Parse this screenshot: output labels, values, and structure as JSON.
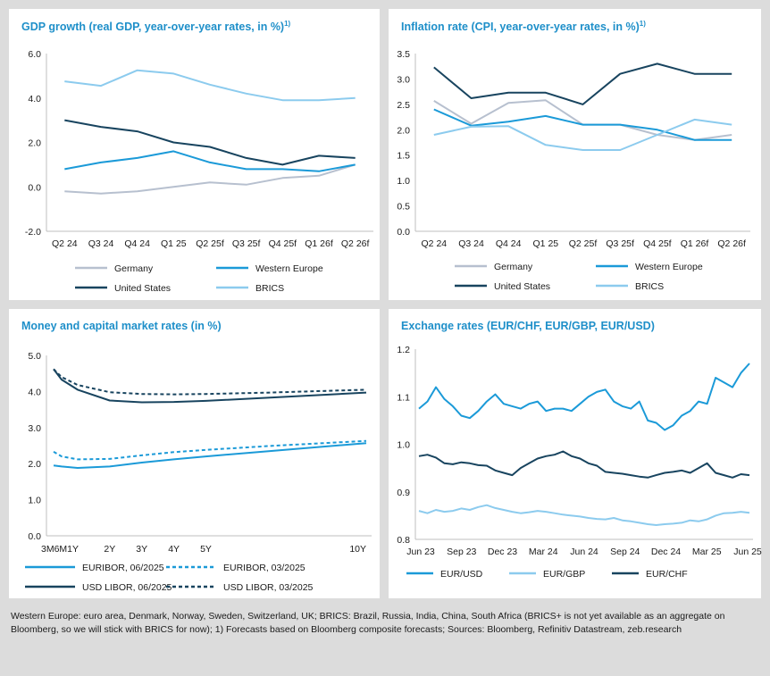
{
  "colors": {
    "germany": "#b7c0cf",
    "western_europe": "#1b9ad8",
    "united_states": "#18445f",
    "brics": "#8ccbee",
    "title": "#1e8fc9"
  },
  "chart_data": [
    {
      "id": "gdp",
      "type": "line",
      "title": "GDP growth (real GDP, year-over-year rates, in %)",
      "title_sup": "1)",
      "categories": [
        "Q2 24",
        "Q3 24",
        "Q4 24",
        "Q1 25",
        "Q2 25f",
        "Q3 25f",
        "Q4 25f",
        "Q1 26f",
        "Q2 26f"
      ],
      "ylim": [
        -2.0,
        6.0
      ],
      "yticks": [
        "6.0",
        "4.0",
        "2.0",
        "0.0",
        "-2.0"
      ],
      "ytick_values": [
        6,
        4,
        2,
        0,
        -2
      ],
      "series": [
        {
          "name": "Germany",
          "color": "#b7c0cf",
          "values": [
            -0.2,
            -0.3,
            -0.2,
            0.0,
            0.2,
            0.1,
            0.4,
            0.5,
            1.0
          ]
        },
        {
          "name": "Western Europe",
          "color": "#1b9ad8",
          "values": [
            0.8,
            1.1,
            1.3,
            1.6,
            1.1,
            0.8,
            0.8,
            0.7,
            1.0
          ]
        },
        {
          "name": "United States",
          "color": "#18445f",
          "values": [
            3.0,
            2.7,
            2.5,
            2.0,
            1.8,
            1.3,
            1.0,
            1.4,
            1.3
          ]
        },
        {
          "name": "BRICS",
          "color": "#8ccbee",
          "values": [
            4.75,
            4.55,
            5.25,
            5.1,
            4.6,
            4.2,
            3.9,
            3.9,
            4.0
          ]
        }
      ]
    },
    {
      "id": "inflation",
      "type": "line",
      "title": "Inflation rate (CPI, year-over-year rates, in %)",
      "title_sup": "1)",
      "categories": [
        "Q2 24",
        "Q3 24",
        "Q4 24",
        "Q1 25",
        "Q2 25f",
        "Q3 25f",
        "Q4 25f",
        "Q1 26f",
        "Q2 26f"
      ],
      "ylim": [
        0.0,
        3.5
      ],
      "yticks": [
        "3.5",
        "3.0",
        "2.5",
        "2.0",
        "1.5",
        "1.0",
        "0.5",
        "0.0"
      ],
      "ytick_values": [
        3.5,
        3.0,
        2.5,
        2.0,
        1.5,
        1.0,
        0.5,
        0.0
      ],
      "series": [
        {
          "name": "Germany",
          "color": "#b7c0cf",
          "values": [
            2.57,
            2.12,
            2.53,
            2.58,
            2.1,
            2.1,
            1.9,
            1.8,
            1.9
          ]
        },
        {
          "name": "Western Europe",
          "color": "#1b9ad8",
          "values": [
            2.4,
            2.08,
            2.16,
            2.27,
            2.1,
            2.1,
            2.0,
            1.8,
            1.8
          ]
        },
        {
          "name": "United States",
          "color": "#18445f",
          "values": [
            3.23,
            2.62,
            2.73,
            2.73,
            2.5,
            3.1,
            3.3,
            3.1,
            3.1
          ]
        },
        {
          "name": "BRICS",
          "color": "#8ccbee",
          "values": [
            1.9,
            2.06,
            2.07,
            1.7,
            1.6,
            1.6,
            1.9,
            2.2,
            2.1
          ]
        }
      ]
    },
    {
      "id": "money",
      "type": "line",
      "title": "Money and capital market rates (in %)",
      "x_tick_labels": [
        "3M6M1Y",
        "2Y",
        "3Y",
        "4Y",
        "5Y",
        "10Y"
      ],
      "x_tick_values": [
        0.25,
        2,
        3,
        4,
        5,
        10
      ],
      "xlim": [
        0.25,
        10
      ],
      "ylim": [
        0.0,
        5.0
      ],
      "yticks": [
        "5.0",
        "4.0",
        "3.0",
        "2.0",
        "1.0",
        "0.0"
      ],
      "ytick_values": [
        5,
        4,
        3,
        2,
        1,
        0
      ],
      "series": [
        {
          "name": "EURIBOR, 06/2025",
          "color": "#1b9ad8",
          "dashed": false,
          "x": [
            0.25,
            0.5,
            1,
            2,
            3,
            4,
            5,
            7,
            10
          ],
          "values": [
            1.95,
            1.92,
            1.88,
            1.92,
            2.03,
            2.12,
            2.2,
            2.35,
            2.57
          ]
        },
        {
          "name": "EURIBOR, 03/2025",
          "color": "#1b9ad8",
          "dashed": true,
          "x": [
            0.25,
            0.5,
            1,
            2,
            3,
            4,
            5,
            7,
            10
          ],
          "values": [
            2.33,
            2.2,
            2.12,
            2.13,
            2.23,
            2.32,
            2.38,
            2.49,
            2.63
          ]
        },
        {
          "name": "USD LIBOR, 06/2025",
          "color": "#18445f",
          "dashed": false,
          "x": [
            0.25,
            0.5,
            1,
            2,
            3,
            4,
            5,
            7,
            10
          ],
          "values": [
            4.62,
            4.33,
            4.05,
            3.75,
            3.7,
            3.71,
            3.74,
            3.83,
            3.97
          ]
        },
        {
          "name": "USD LIBOR, 03/2025",
          "color": "#18445f",
          "dashed": true,
          "x": [
            0.25,
            0.5,
            1,
            2,
            3,
            4,
            5,
            7,
            10
          ],
          "values": [
            4.62,
            4.4,
            4.18,
            3.98,
            3.93,
            3.92,
            3.93,
            3.97,
            4.05
          ]
        }
      ]
    },
    {
      "id": "fx",
      "type": "line",
      "title": "Exchange rates (EUR/CHF, EUR/GBP, EUR/USD)",
      "x_tick_labels": [
        "Jun 23",
        "Sep 23",
        "Dec 23",
        "Mar 24",
        "Jun 24",
        "Sep 24",
        "Dec 24",
        "Mar 25",
        "Jun 25"
      ],
      "xlim": [
        0,
        24.5
      ],
      "ylim": [
        0.8,
        1.2
      ],
      "yticks": [
        "1.2",
        "1.1",
        "1.0",
        "0.9",
        "0.8"
      ],
      "ytick_values": [
        1.2,
        1.1,
        1.0,
        0.9,
        0.8
      ],
      "series": [
        {
          "name": "EUR/USD",
          "color": "#1b9ad8",
          "values": [
            1.075,
            1.09,
            1.12,
            1.095,
            1.08,
            1.06,
            1.055,
            1.07,
            1.09,
            1.105,
            1.085,
            1.08,
            1.075,
            1.085,
            1.09,
            1.07,
            1.075,
            1.075,
            1.07,
            1.085,
            1.1,
            1.11,
            1.115,
            1.09,
            1.08,
            1.075,
            1.09,
            1.05,
            1.045,
            1.03,
            1.04,
            1.06,
            1.07,
            1.09,
            1.085,
            1.14,
            1.13,
            1.12,
            1.15,
            1.17
          ]
        },
        {
          "name": "EUR/GBP",
          "color": "#8ccbee",
          "values": [
            0.86,
            0.855,
            0.862,
            0.858,
            0.86,
            0.865,
            0.862,
            0.868,
            0.872,
            0.866,
            0.862,
            0.858,
            0.855,
            0.857,
            0.86,
            0.858,
            0.855,
            0.852,
            0.85,
            0.848,
            0.845,
            0.843,
            0.842,
            0.845,
            0.84,
            0.838,
            0.835,
            0.832,
            0.83,
            0.832,
            0.833,
            0.835,
            0.84,
            0.838,
            0.842,
            0.85,
            0.855,
            0.856,
            0.858,
            0.856
          ]
        },
        {
          "name": "EUR/CHF",
          "color": "#18445f",
          "values": [
            0.975,
            0.978,
            0.972,
            0.96,
            0.958,
            0.962,
            0.96,
            0.956,
            0.955,
            0.945,
            0.94,
            0.935,
            0.95,
            0.96,
            0.97,
            0.975,
            0.978,
            0.985,
            0.975,
            0.97,
            0.96,
            0.955,
            0.942,
            0.94,
            0.938,
            0.935,
            0.932,
            0.93,
            0.935,
            0.94,
            0.942,
            0.945,
            0.94,
            0.95,
            0.96,
            0.94,
            0.935,
            0.93,
            0.937,
            0.935
          ]
        }
      ]
    }
  ],
  "footnote": "Western Europe: euro area, Denmark, Norway, Sweden, Switzerland, UK; BRICS: Brazil, Russia, India, China, South Africa (BRICS+ is not yet available as an aggregate on Bloomberg, so we will stick with BRICS for now); 1) Forecasts based on Bloomberg composite forecasts; Sources: Bloomberg, Refinitiv Datastream, zeb.research"
}
